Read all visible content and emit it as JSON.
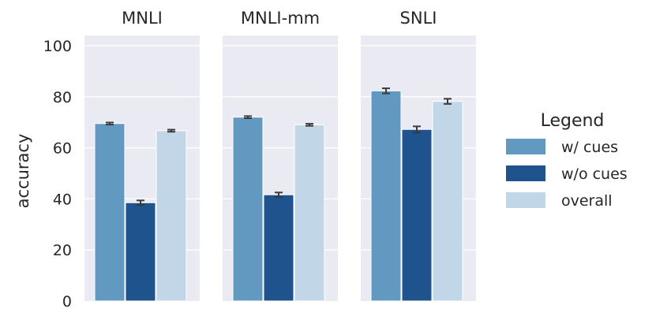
{
  "chart_data": {
    "type": "bar",
    "ylabel": "accuracy",
    "ylim": [
      0,
      100
    ],
    "yticks": [
      0,
      20,
      40,
      60,
      80,
      100
    ],
    "grid": true,
    "legend": {
      "title": "Legend",
      "placement": "right",
      "entries": [
        "w/ cues",
        "w/o cues",
        "overall"
      ]
    },
    "colors": {
      "w/ cues": "#6199c0",
      "w/o cues": "#1f538d",
      "overall": "#c1d6e7",
      "panel_background": "#eaeaf2",
      "error_bar": "#3a3a3a"
    },
    "panels": [
      {
        "title": "MNLI",
        "series": [
          {
            "name": "w/ cues",
            "value": 69.5,
            "err": 0.4
          },
          {
            "name": "w/o cues",
            "value": 38.5,
            "err": 0.9
          },
          {
            "name": "overall",
            "value": 66.7,
            "err": 0.4
          }
        ]
      },
      {
        "title": "MNLI-mm",
        "series": [
          {
            "name": "w/ cues",
            "value": 72.0,
            "err": 0.4
          },
          {
            "name": "w/o cues",
            "value": 41.6,
            "err": 0.9
          },
          {
            "name": "overall",
            "value": 69.0,
            "err": 0.4
          }
        ]
      },
      {
        "title": "SNLI",
        "series": [
          {
            "name": "w/ cues",
            "value": 82.3,
            "err": 1.0
          },
          {
            "name": "w/o cues",
            "value": 67.2,
            "err": 1.2
          },
          {
            "name": "overall",
            "value": 78.2,
            "err": 1.0
          }
        ]
      }
    ]
  }
}
